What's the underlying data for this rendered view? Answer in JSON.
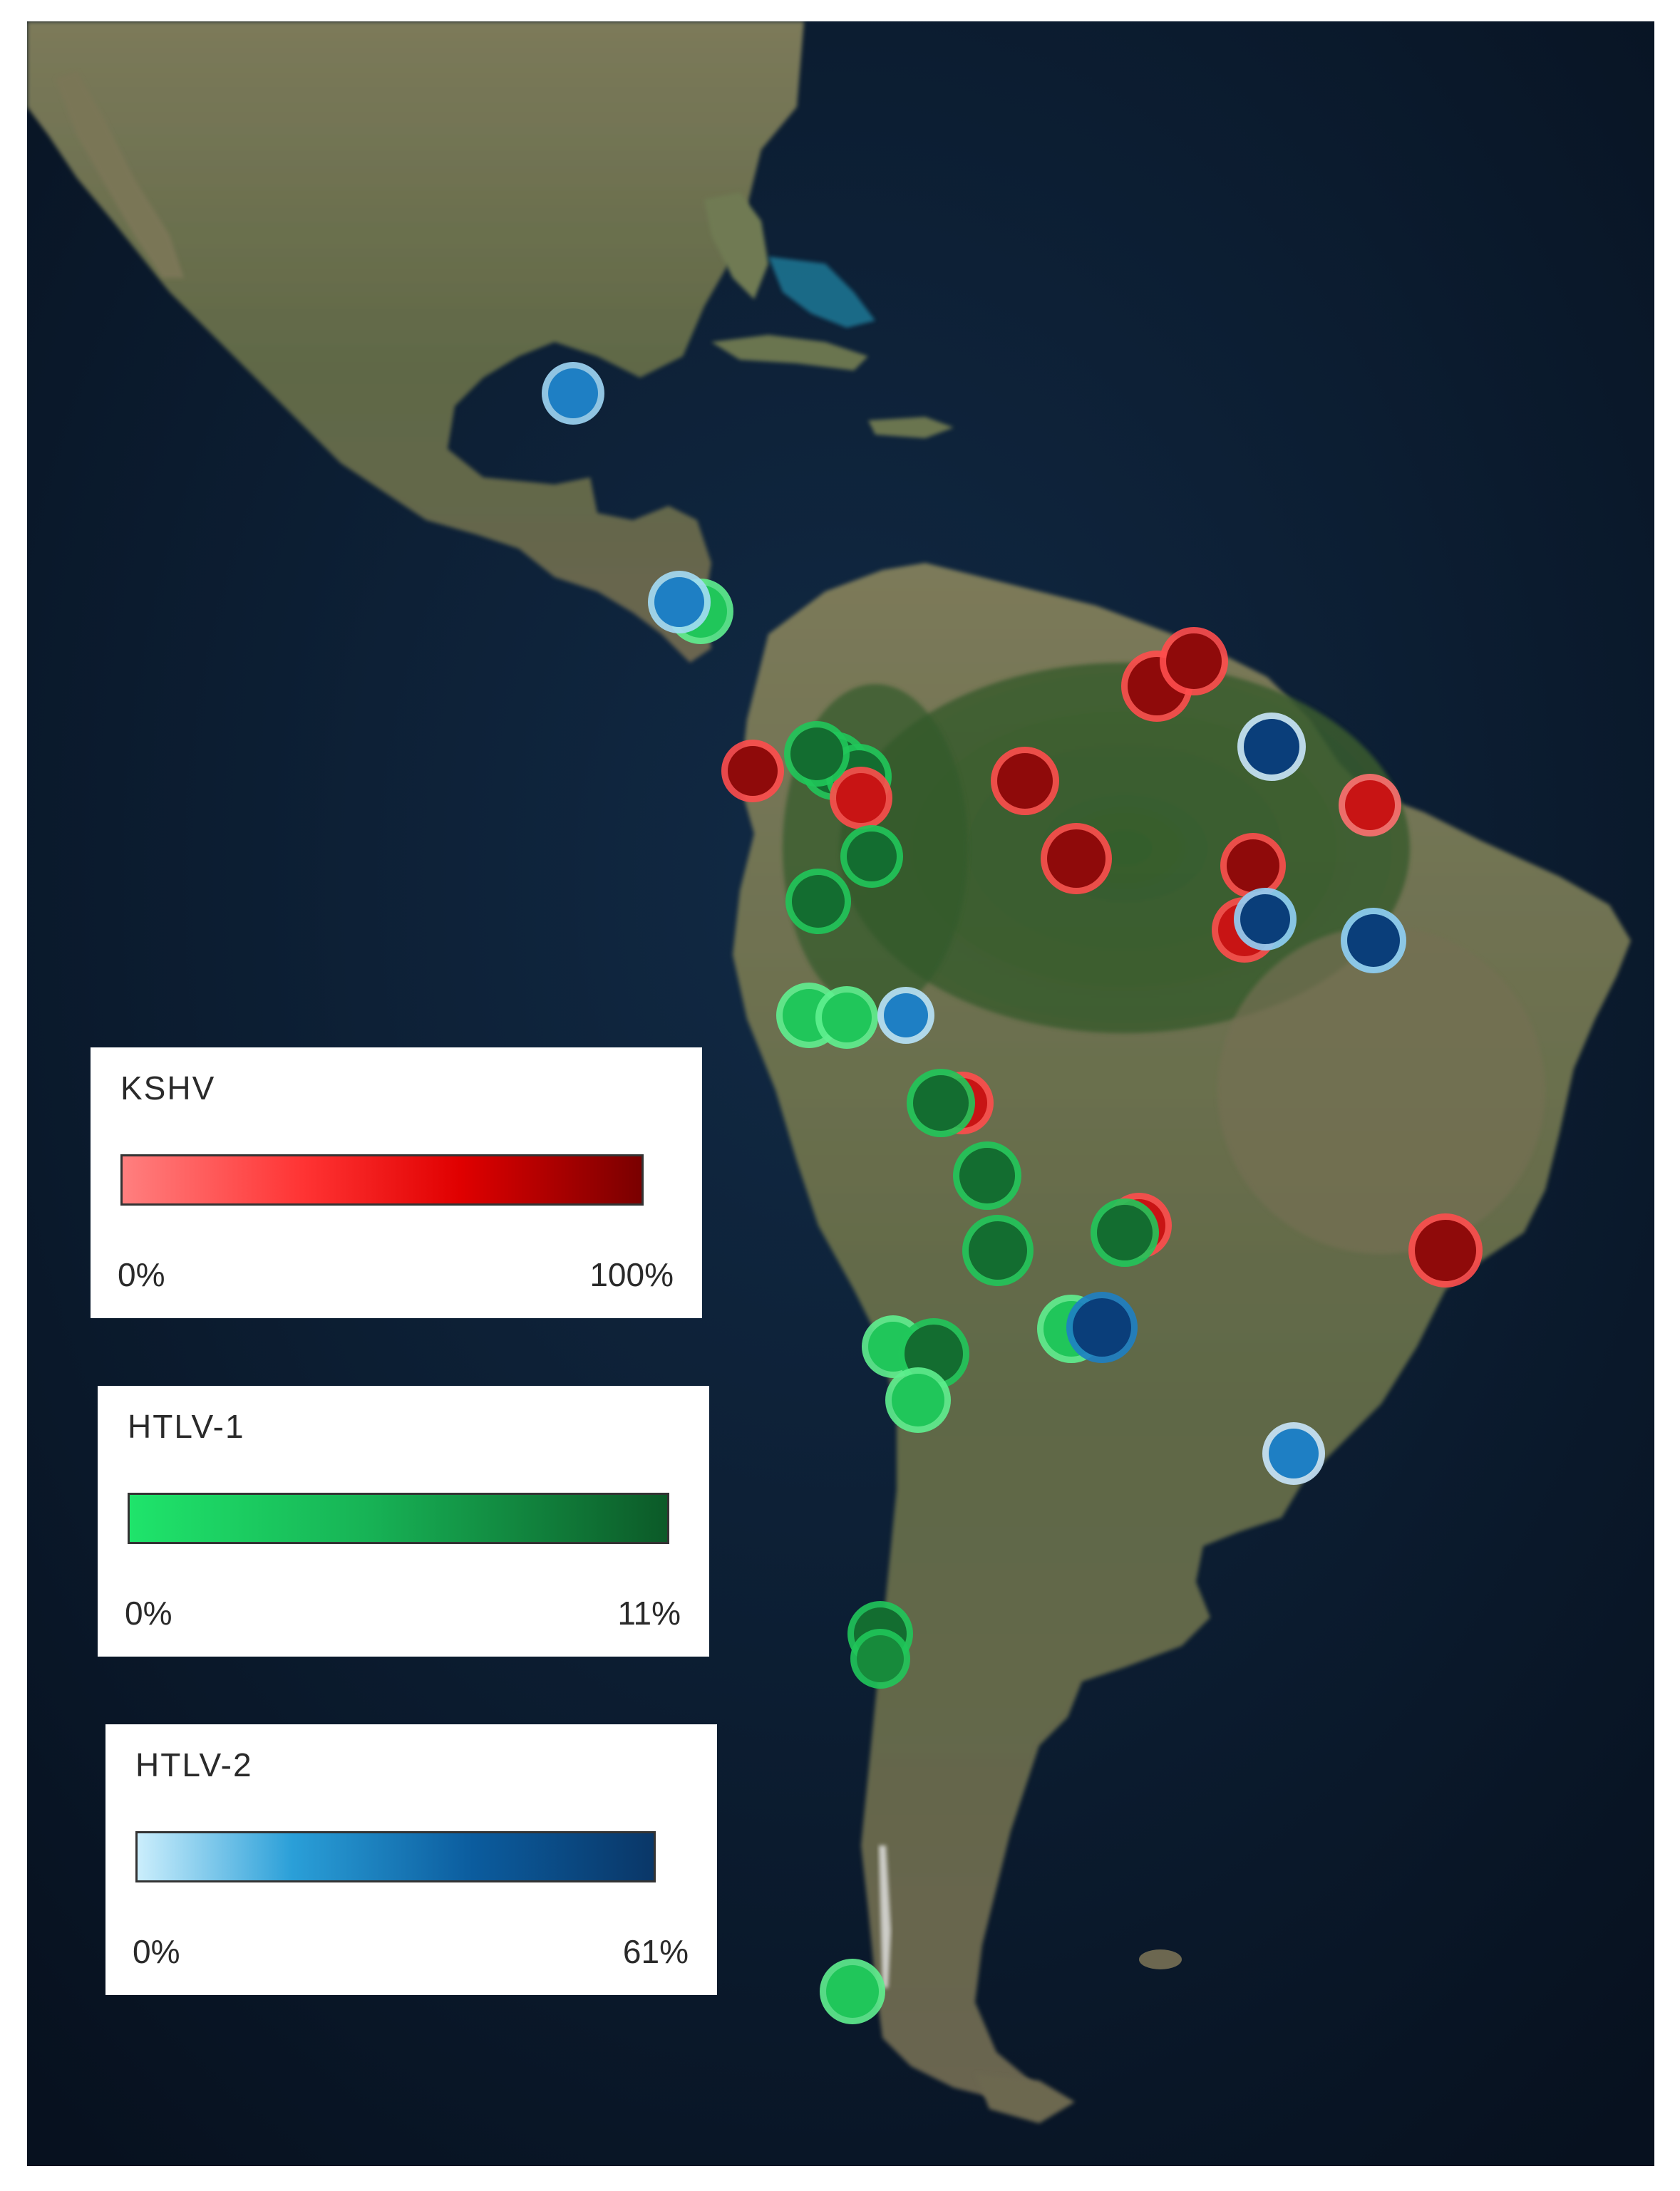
{
  "legends": [
    {
      "id": "kshv",
      "title": "KSHV",
      "min_label": "0%",
      "max_label": "100%",
      "color_low": "#ff7f7f",
      "color_high": "#7a0000"
    },
    {
      "id": "htlv1",
      "title": "HTLV-1",
      "min_label": "0%",
      "max_label": "11%",
      "color_low": "#1fe46b",
      "color_high": "#0c5a28"
    },
    {
      "id": "htlv2",
      "title": "HTLV-2",
      "min_label": "0%",
      "max_label": "61%",
      "color_low": "#cbeefc",
      "color_high": "#0a3768"
    }
  ],
  "map": {
    "ocean_color": "#0b1a2e",
    "land_color": "#5d6a45",
    "forest_color": "#2f5527"
  }
}
